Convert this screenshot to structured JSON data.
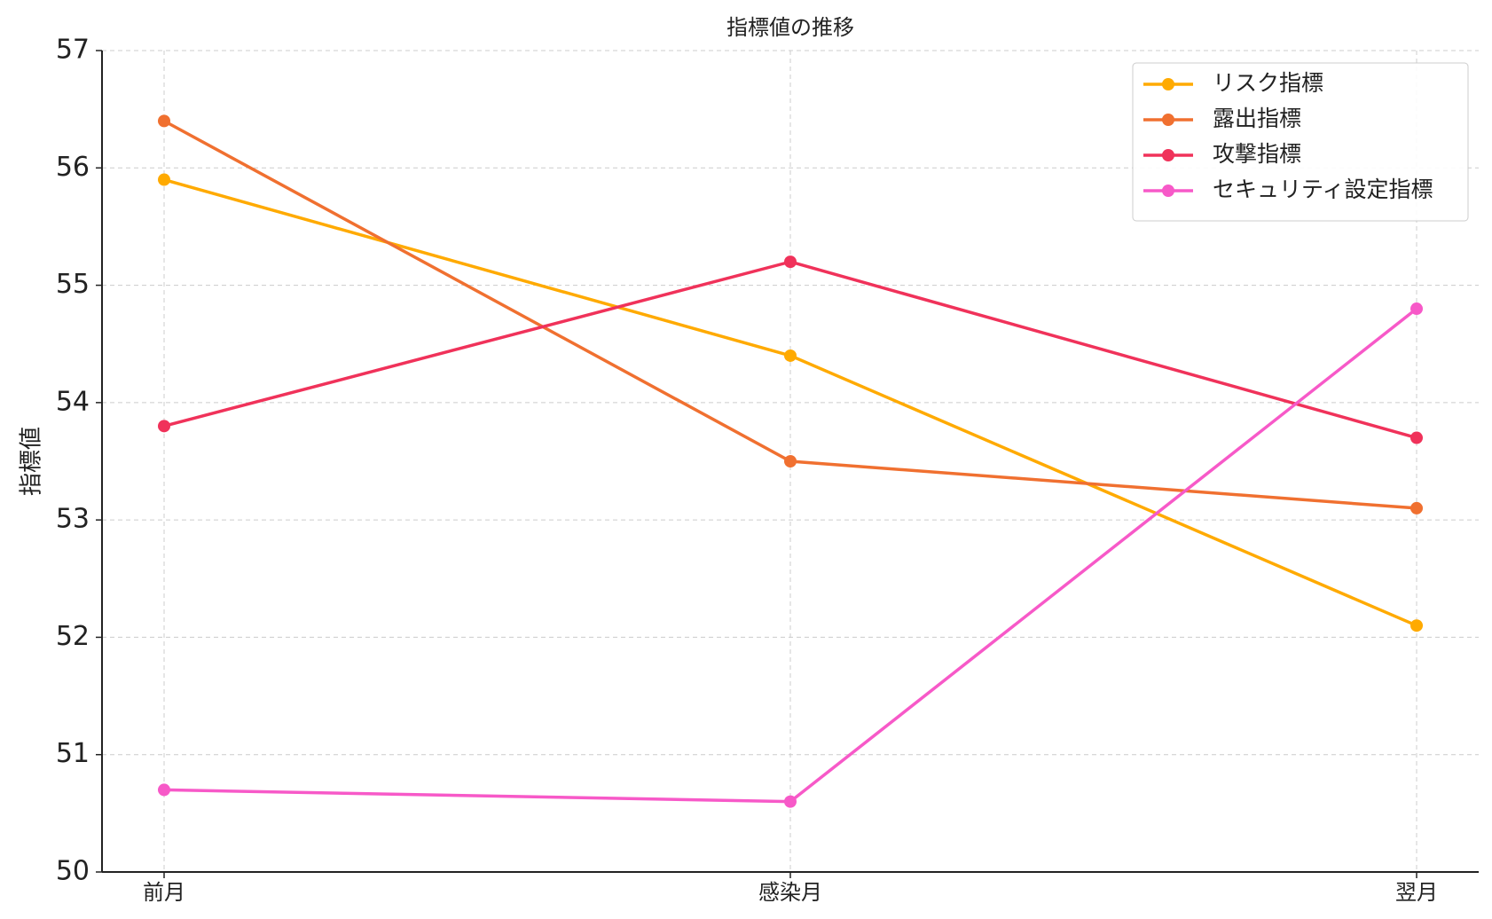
{
  "chart_data": {
    "type": "line",
    "title": "指標値の推移",
    "ylabel": "指標値",
    "categories": [
      "前月",
      "感染月",
      "翌月"
    ],
    "series": [
      {
        "name": "リスク指標",
        "color": "#ffaa00",
        "values": [
          55.9,
          54.4,
          52.1
        ]
      },
      {
        "name": "露出指標",
        "color": "#f07030",
        "values": [
          56.4,
          53.5,
          53.1
        ]
      },
      {
        "name": "攻撃指標",
        "color": "#f0325a",
        "values": [
          53.8,
          55.2,
          53.7
        ]
      },
      {
        "name": "セキュリティ設定指標",
        "color": "#f759c8",
        "values": [
          50.7,
          50.6,
          54.8
        ]
      }
    ],
    "ylim": [
      50,
      57
    ],
    "yticks": [
      50,
      51,
      52,
      53,
      54,
      55,
      56,
      57
    ],
    "grid": true,
    "legend": "upper right"
  }
}
